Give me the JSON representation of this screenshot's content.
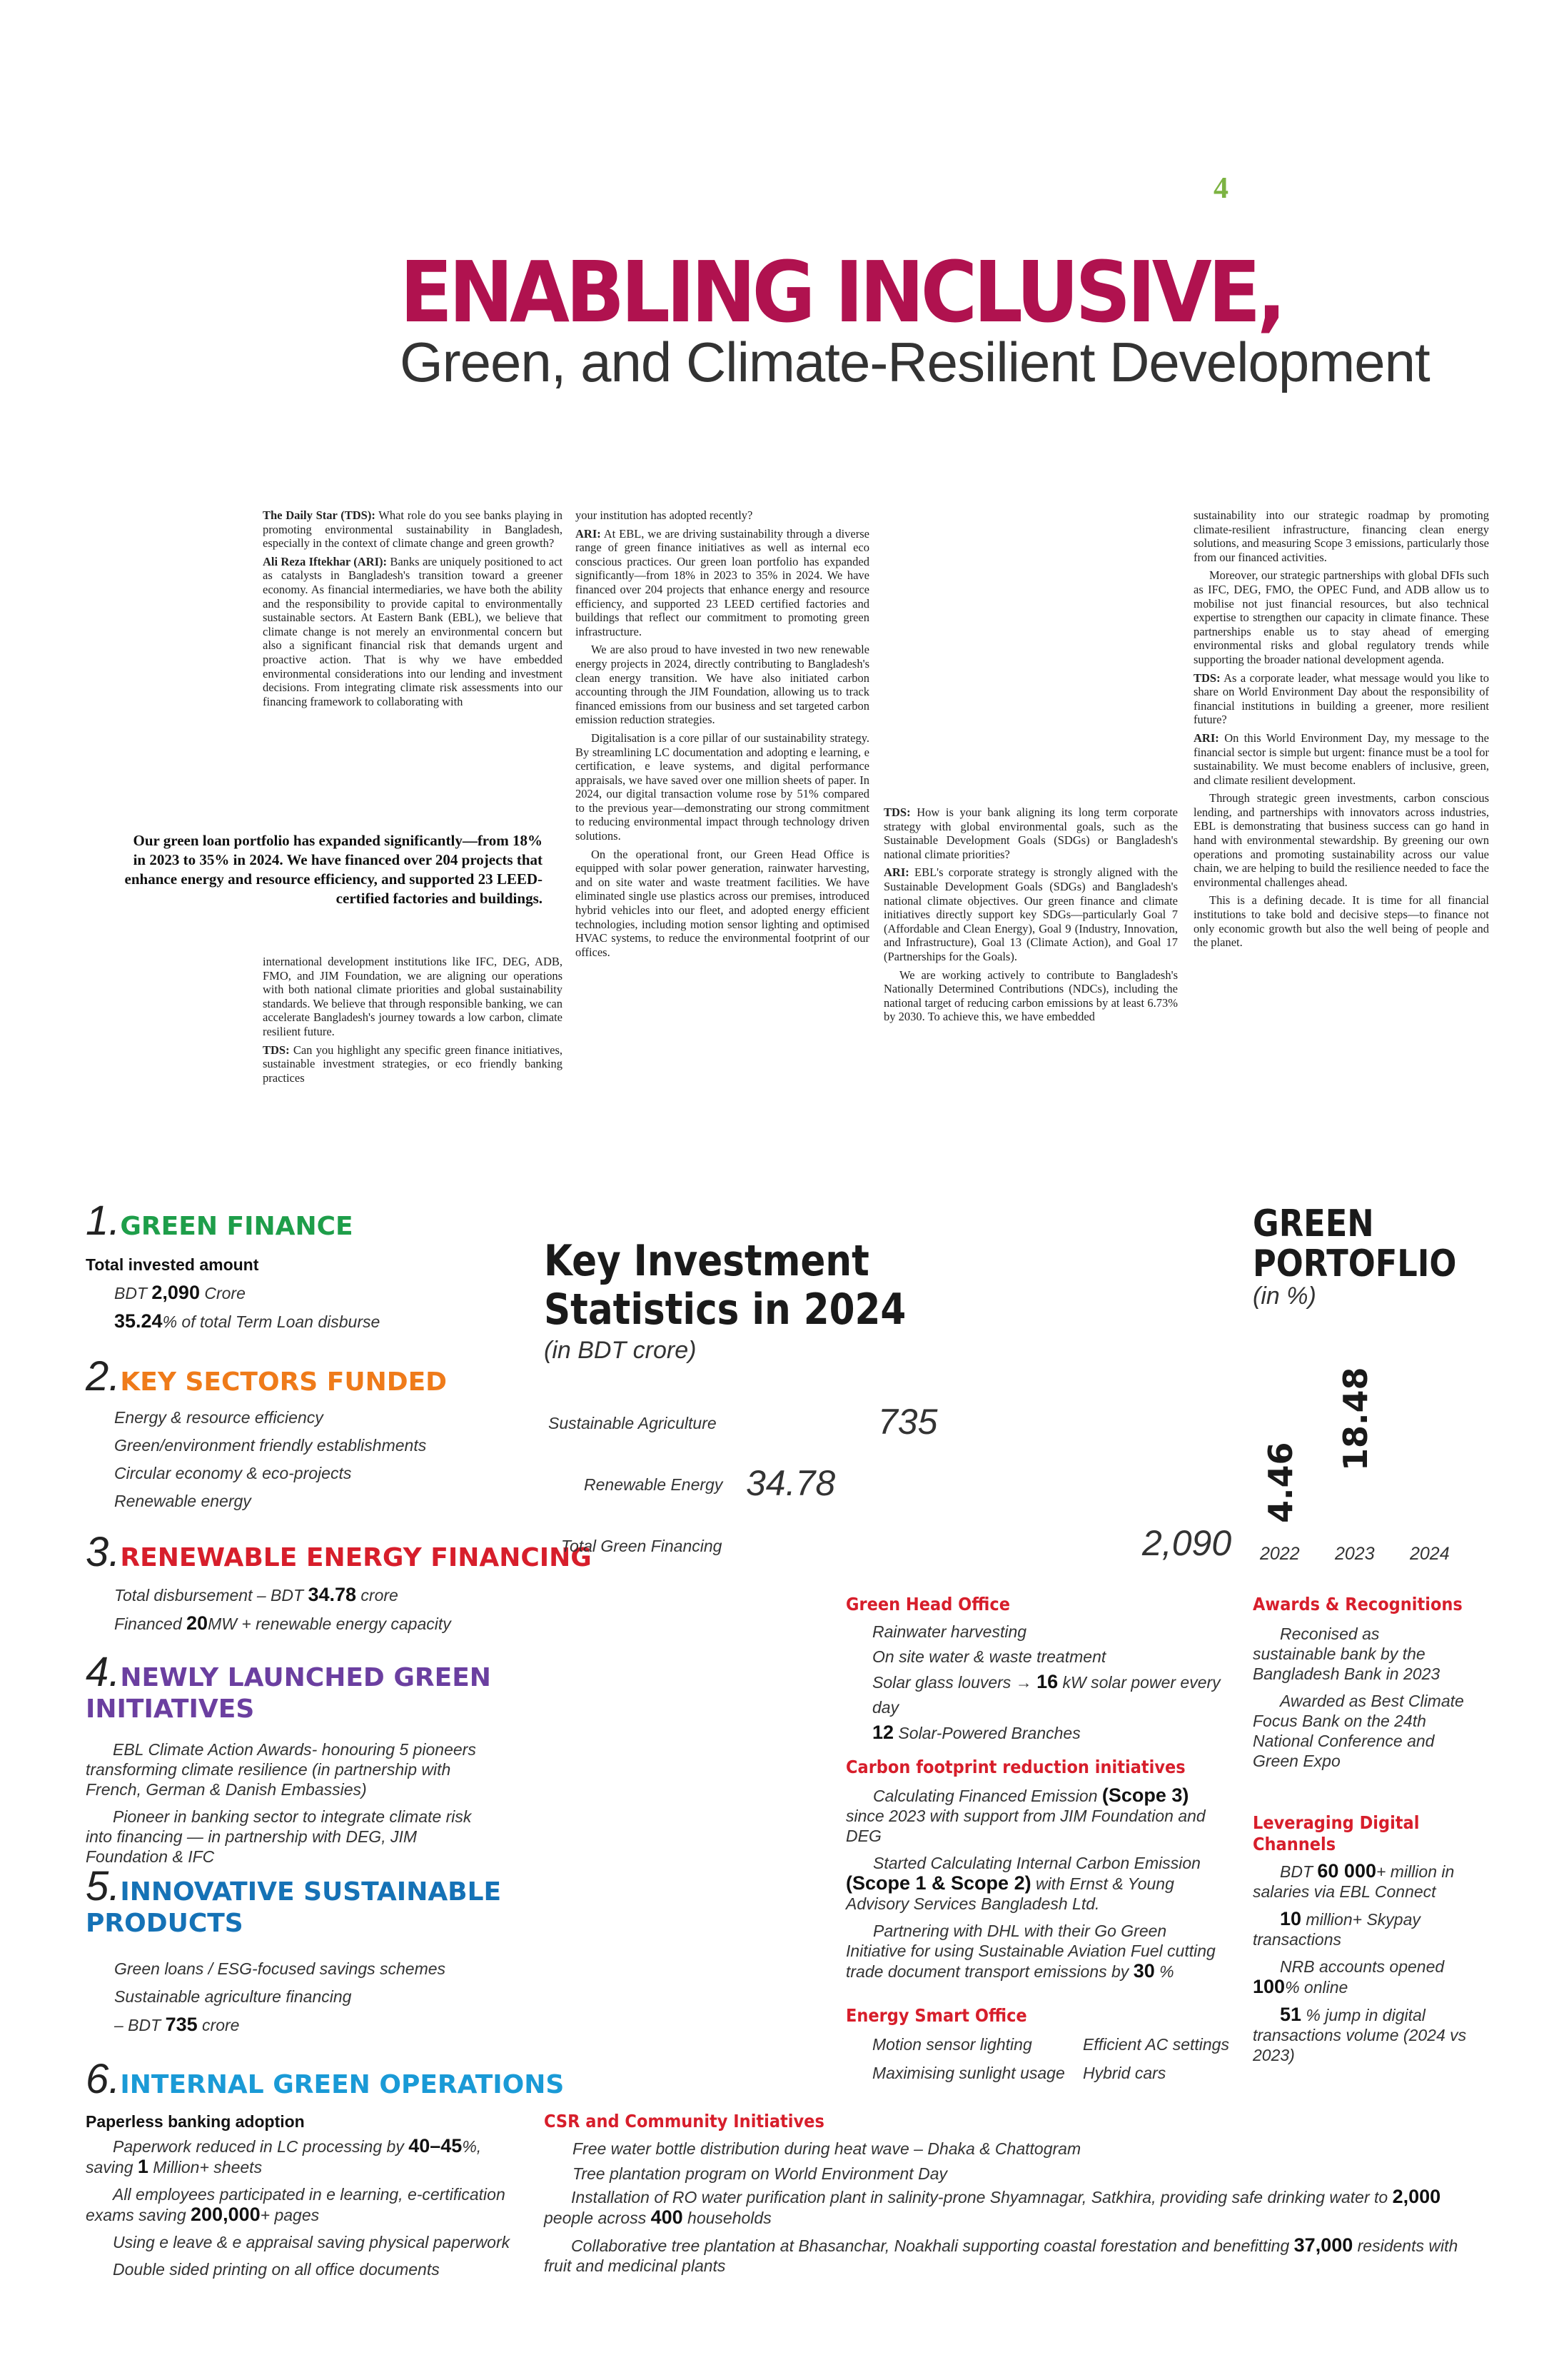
{
  "page_number": "4",
  "title": {
    "line1": "ENABLING INCLUSIVE,",
    "line2": "Green, and Climate-Resilient Development"
  },
  "interview": {
    "col1": [
      {
        "q": "The Daily Star (TDS):",
        "t": " What role do you see banks playing in promoting environmental sustainability in Bangladesh, especially in the context of climate change and green growth?"
      },
      {
        "q": "Ali Reza Iftekhar (ARI):",
        "t": " Banks are uniquely positioned to act as catalysts in Bangladesh's transition toward a greener economy. As financial intermediaries, we have both the ability and the responsibility to provide capital to environmentally sustainable sectors. At Eastern Bank (EBL), we believe that climate change is not merely an environmental concern but also a significant financial risk that demands urgent and proactive action. That is why we have embedded environmental considerations into our lending and investment decisions. From integrating climate risk assessments into our financing framework to collaborating with"
      }
    ],
    "col1b": [
      {
        "q": "",
        "t": "international development institutions like IFC, DEG, ADB, FMO, and JIM Foundation, we are aligning our operations with both national climate priorities and global sustainability standards. We believe that through responsible banking, we can accelerate Bangladesh's journey towards a low carbon, climate resilient future."
      },
      {
        "q": "TDS:",
        "t": " Can you highlight any specific green finance initiatives, sustainable investment strategies, or eco friendly banking practices"
      }
    ],
    "pull_quote": "Our green loan portfolio has expanded significantly—from 18% in 2023 to 35% in 2024. We have financed over 204 projects that enhance energy and resource efficiency, and supported 23 LEED-certified factories and buildings.",
    "col2": [
      {
        "q": "",
        "t": "your institution has adopted recently?"
      },
      {
        "q": "ARI:",
        "t": " At EBL, we are driving sustainability through a diverse range of green finance initiatives as well as internal eco conscious practices. Our green loan portfolio has expanded significantly—from 18% in 2023 to 35% in 2024. We have financed over 204 projects that enhance energy and resource efficiency, and supported 23 LEED certified factories and buildings that reflect our commitment to promoting green infrastructure."
      },
      {
        "q": "",
        "t": "We are also proud to have invested in two new renewable energy projects in 2024, directly contributing to Bangladesh's clean energy transition. We have also initiated carbon accounting through the JIM Foundation, allowing us to track financed emissions from our business and set targeted carbon emission reduction strategies.",
        "indent": true
      },
      {
        "q": "",
        "t": "Digitalisation is a core pillar of our sustainability strategy. By streamlining LC documentation and adopting e learning, e certification, e leave systems, and digital performance appraisals, we have saved over one million sheets of paper. In 2024, our digital transaction volume rose by 51% compared to the previous year—demonstrating our strong commitment to reducing environmental impact through technology driven solutions.",
        "indent": true
      },
      {
        "q": "",
        "t": "On the operational front, our Green Head Office is equipped with solar power generation, rainwater harvesting, and on site water and waste treatment facilities. We have eliminated single use plastics across our premises, introduced hybrid vehicles into our fleet, and adopted energy efficient technologies, including motion sensor lighting and optimised HVAC systems, to reduce the environmental footprint of our offices.",
        "indent": true
      }
    ],
    "col3": [
      {
        "q": "TDS:",
        "t": " How is your bank aligning its long term corporate strategy with global environmental goals, such as the Sustainable Development Goals (SDGs) or Bangladesh's national climate priorities?"
      },
      {
        "q": "ARI:",
        "t": " EBL's corporate strategy is strongly aligned with the Sustainable Development Goals (SDGs) and Bangladesh's national climate objectives. Our green finance and climate initiatives directly support key SDGs—particularly Goal 7 (Affordable and Clean Energy), Goal 9 (Industry, Innovation, and Infrastructure), Goal 13 (Climate Action), and Goal 17 (Partnerships for the Goals)."
      },
      {
        "q": "",
        "t": "We are working actively to contribute to Bangladesh's Nationally Determined Contributions (NDCs), including the national target of reducing carbon emissions by at least 6.73% by 2030. To achieve this, we have embedded",
        "indent": true
      }
    ],
    "col4": [
      {
        "q": "",
        "t": "sustainability into our strategic roadmap by promoting climate-resilient infrastructure, financing clean energy solutions, and measuring Scope 3 emissions, particularly those from our financed activities."
      },
      {
        "q": "",
        "t": "Moreover, our strategic partnerships with global DFIs such as IFC, DEG, FMO, the OPEC Fund, and ADB allow us to mobilise not just financial resources, but also technical expertise to strengthen our capacity in climate finance. These partnerships enable us to stay ahead of emerging environmental risks and global regulatory trends while supporting the broader national development agenda.",
        "indent": true
      },
      {
        "q": "TDS:",
        "t": " As a corporate leader, what message would you like to share on World Environment Day about the responsibility of financial institutions in building a greener, more resilient future?"
      },
      {
        "q": "ARI:",
        "t": " On this World Environment Day, my message to the financial sector is simple but urgent: finance must be a tool for sustainability. We must become enablers of inclusive, green, and climate resilient development."
      },
      {
        "q": "",
        "t": "Through strategic green investments, carbon conscious lending, and partnerships with innovators across industries, EBL is demonstrating that business success can go hand in hand with environmental stewardship. By greening our own operations and promoting sustainability across our value chain, we are helping to build the resilience needed to face the environmental challenges ahead.",
        "indent": true
      },
      {
        "q": "",
        "t": "This is a defining decade. It is time for all financial institutions to take bold and decisive steps—to finance not only economic growth but also the well being of people and the planet.",
        "indent": true
      }
    ]
  },
  "sections": {
    "s1": {
      "num": "1.",
      "title": "GREEN FINANCE",
      "sub": "Total invested amount",
      "l1a": "BDT ",
      "l1b": "2,090",
      "l1c": " Crore",
      "l2a": "35.24",
      "l2b": "% of total Term Loan disburse"
    },
    "s2": {
      "num": "2.",
      "title": "KEY SECTORS FUNDED",
      "items": [
        "Energy & resource efficiency",
        "Green/environment friendly establishments",
        "Circular economy & eco-projects",
        "Renewable energy"
      ]
    },
    "s3": {
      "num": "3.",
      "title": "RENEWABLE ENERGY FINANCING",
      "l1a": "Total disbursement – BDT ",
      "l1b": "34.78",
      "l1c": " crore",
      "l2a": "Financed ",
      "l2b": "20",
      "l2c": "MW + renewable energy capacity"
    },
    "s4": {
      "num": "4.",
      "title_a": "NEWLY LAUNCHED GREEN",
      "title_b": "INITIATIVES",
      "items": [
        "EBL Climate Action Awards- honouring 5 pioneers transforming climate resilience (in partnership with French, German & Danish Embassies)",
        "Pioneer in banking sector to integrate climate risk into financing — in partnership with DEG, JIM Foundation & IFC"
      ]
    },
    "s5": {
      "num": "5.",
      "title_a": "INNOVATIVE SUSTAINABLE",
      "title_b": "PRODUCTS",
      "items": [
        "Green loans / ESG-focused savings schemes",
        "Sustainable agriculture financing"
      ],
      "l3a": "– BDT ",
      "l3b": "735",
      "l3c": " crore"
    },
    "s6": {
      "num": "6.",
      "title": "INTERNAL GREEN OPERATIONS",
      "sub": "Paperless banking adoption",
      "i1a": "Paperwork reduced in LC processing by ",
      "i1b": "40–45",
      "i1c": "%, saving ",
      "i1d": "1",
      "i1e": " Million+ sheets",
      "i2a": "All employees participated in e learning, e-certification exams saving ",
      "i2b": "200,000",
      "i2c": "+ pages",
      "i3": "Using e leave & e appraisal saving physical paperwork",
      "i4": "Double sided printing on all office documents"
    }
  },
  "key_stats": {
    "title_a": "Key Investment",
    "title_b": "Statistics in 2024",
    "subtitle": "(in BDT crore)",
    "rows": [
      {
        "label": "Sustainable Agriculture",
        "value": "735"
      },
      {
        "label": "Renewable Energy",
        "value": "34.78"
      },
      {
        "label": "Total Green Financing",
        "value": "2,090"
      }
    ]
  },
  "chart_data": {
    "type": "bar",
    "title": "GREEN PORTOFLIO",
    "subtitle": "(in %)",
    "categories": [
      "2022",
      "2023",
      "2024"
    ],
    "values": [
      4.46,
      18.48,
      null
    ],
    "value_labels": [
      "4.46",
      "18.48",
      ""
    ]
  },
  "green_head_office": {
    "title": "Green Head Office",
    "i1": "Rainwater harvesting",
    "i2": "On site water & waste treatment",
    "i3a": "Solar glass louvers → ",
    "i3b": "16",
    "i3c": " kW solar power every day",
    "i4a": "12",
    "i4b": " Solar-Powered Branches"
  },
  "carbon": {
    "title": "Carbon footprint reduction initiatives",
    "i1a": "Calculating Financed Emission ",
    "i1b": "(Scope 3)",
    "i1c": " since 2023 with support from JIM Foundation and DEG",
    "i2a": "Started Calculating Internal Carbon Emission ",
    "i2b": "(Scope 1 & Scope 2)",
    "i2c": " with Ernst & Young Advisory Services Bangladesh Ltd.",
    "i3a": "Partnering with DHL with their Go Green Initiative for using Sustainable Aviation Fuel cutting trade document transport emissions by ",
    "i3b": "30",
    "i3c": " %"
  },
  "energy_smart": {
    "title": "Energy Smart Office",
    "items": [
      "Motion sensor lighting",
      "Efficient AC settings",
      "Maximising sunlight usage",
      "Hybrid cars"
    ]
  },
  "awards": {
    "title": "Awards & Recognitions",
    "items": [
      "Reconised as sustainable bank by the Bangladesh Bank in 2023",
      "Awarded as Best Climate Focus Bank on the 24th National Conference and Green Expo"
    ]
  },
  "digital": {
    "title_a": "Leveraging Digital",
    "title_b": "Channels",
    "i1a": "BDT ",
    "i1b": "60 000",
    "i1c": "+ million in salaries via EBL Connect",
    "i2a": "10",
    "i2b": " million+ Skypay transactions",
    "i3a": "NRB accounts opened ",
    "i3b": "100",
    "i3c": "% online",
    "i4a": "51",
    "i4b": " % jump in digital transactions volume (2024 vs 2023)"
  },
  "csr": {
    "title": "CSR and Community Initiatives",
    "i1": "Free water bottle distribution during heat wave – Dhaka & Chattogram",
    "i2": "Tree plantation program on World Environment Day",
    "i3a": "Installation of RO water purification plant in salinity-prone Shyamnagar, Satkhira, providing safe drinking water to ",
    "i3b": "2,000",
    "i3c": " people across ",
    "i3d": "400",
    "i3e": " households",
    "i4a": "Collaborative tree plantation at Bhasanchar, Noakhali supporting coastal forestation and benefitting ",
    "i4b": "37,000",
    "i4c": " residents with fruit and medicinal plants"
  },
  "colors": {
    "title": "#b0124f",
    "page_number": "#7cb342",
    "green": "#1e9e4a",
    "orange": "#ef7b1a",
    "red": "#d71e2b",
    "purple": "#6b3fa0",
    "blue": "#1572b6",
    "cyan": "#1a9ad6"
  }
}
